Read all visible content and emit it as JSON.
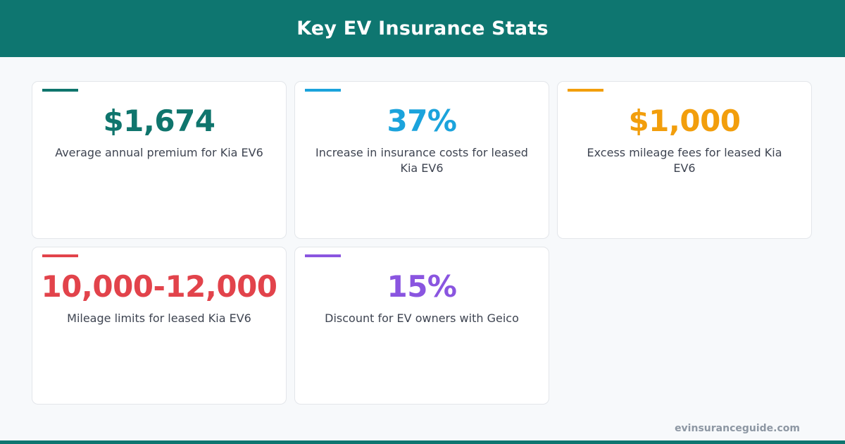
{
  "header": {
    "title": "Key EV Insurance Stats"
  },
  "stats": [
    {
      "value": "$1,674",
      "label": "Average annual premium for Kia EV6",
      "color": "#0f756d"
    },
    {
      "value": "37%",
      "label": "Increase in insurance costs for leased Kia EV6",
      "color": "#1ba3dc"
    },
    {
      "value": "$1,000",
      "label": "Excess mileage fees for leased Kia EV6",
      "color": "#f29e0c"
    },
    {
      "value": "10,000-12,000",
      "label": "Mileage limits for leased Kia EV6",
      "color": "#e2434b"
    },
    {
      "value": "15%",
      "label": "Discount for EV owners with Geico",
      "color": "#8a55e0"
    }
  ],
  "footer": {
    "url": "evinsuranceguide.com"
  },
  "colors": {
    "brand": "#0e7670",
    "background": "#f7f9fb"
  }
}
